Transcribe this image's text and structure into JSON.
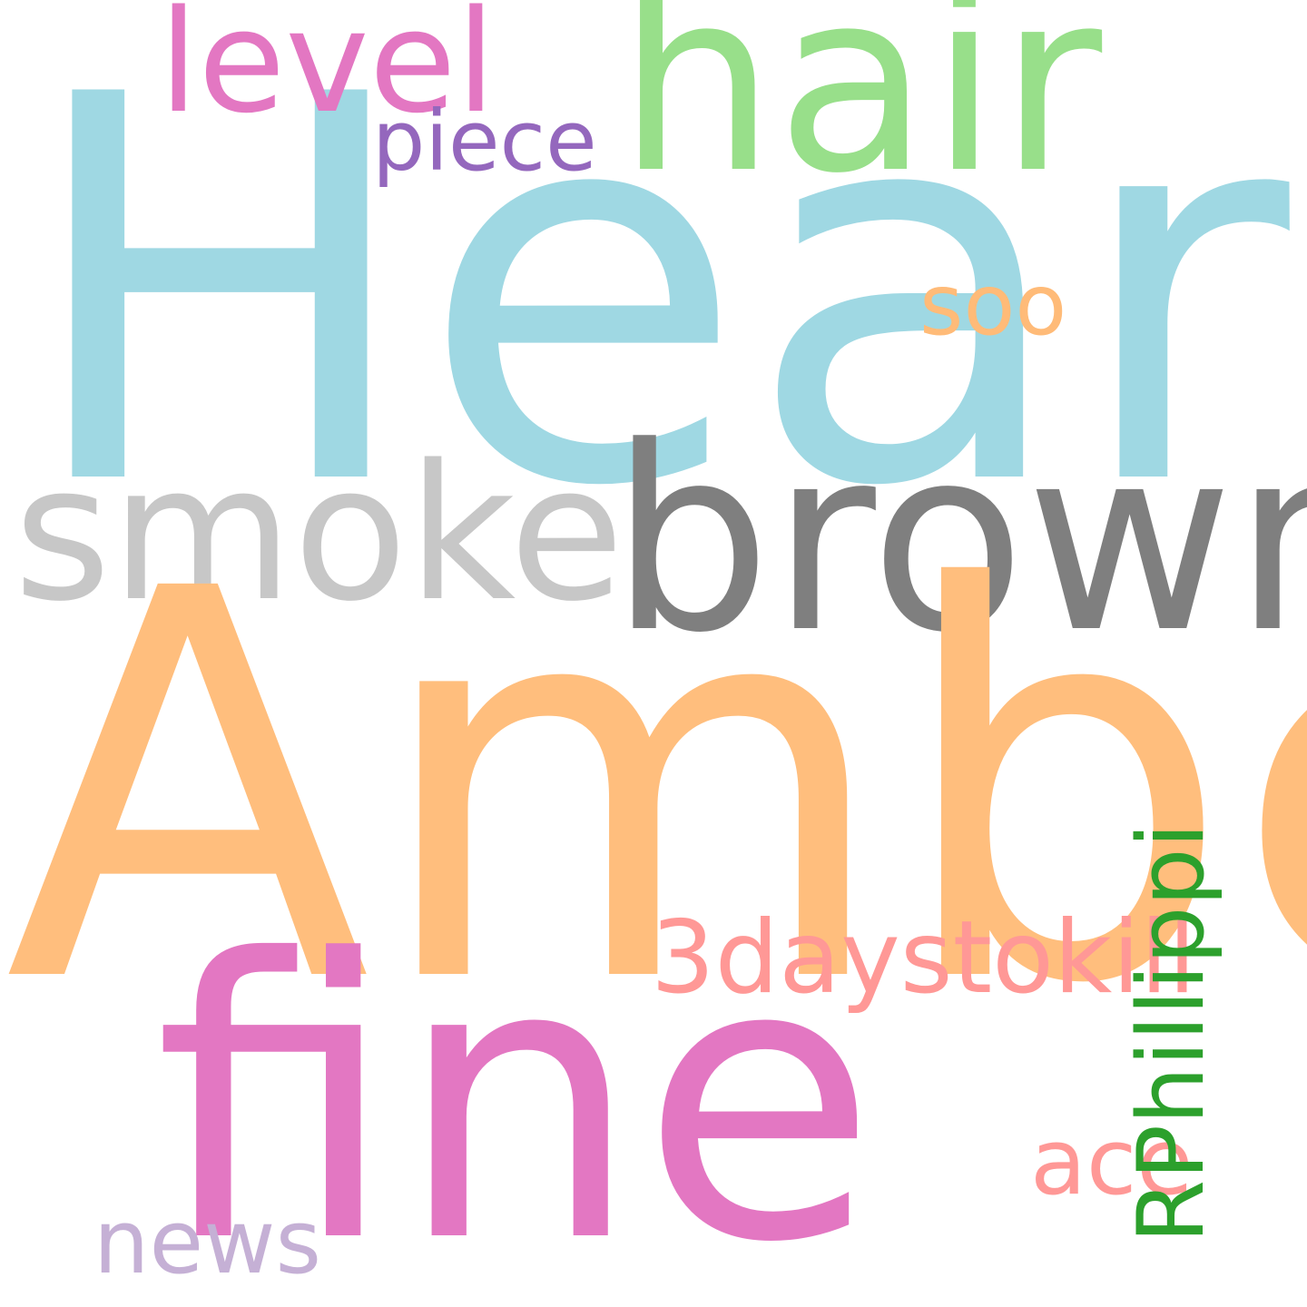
{
  "words": {
    "heard": {
      "text": "Heard",
      "color": "#9fd8e3"
    },
    "amber": {
      "text": "Amber",
      "color": "#ffbe7d"
    },
    "fine": {
      "text": "fine",
      "color": "#e377c2"
    },
    "brown": {
      "text": "brown",
      "color": "#7f7f7f"
    },
    "smoke": {
      "text": "smoke",
      "color": "#c7c7c7"
    },
    "hair": {
      "text": "hair",
      "color": "#98df8a"
    },
    "level": {
      "text": "level",
      "color": "#e377c2"
    },
    "piece": {
      "text": "piece",
      "color": "#9467bd"
    },
    "soo": {
      "text": "soo",
      "color": "#ffbb78"
    },
    "threedaystokill": {
      "text": "3daystokill",
      "color": "#ff9896"
    },
    "ace": {
      "text": "ace",
      "color": "#ff9896"
    },
    "news": {
      "text": "news",
      "color": "#c5b0d5"
    },
    "rphillippi": {
      "text": "RPhillippi",
      "color": "#2ca02c",
      "orientation": "vertical"
    }
  }
}
